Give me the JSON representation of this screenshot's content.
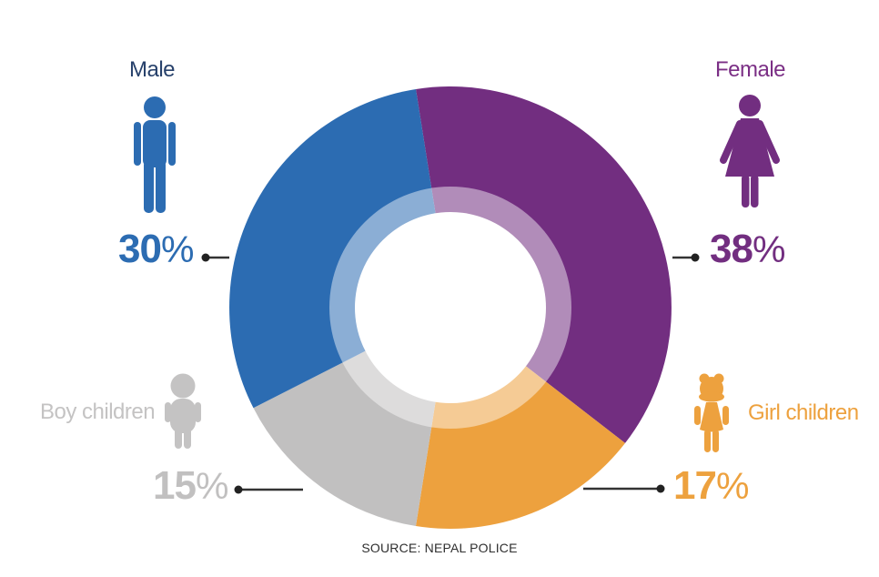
{
  "chart_data": {
    "type": "pie",
    "subtype": "donut",
    "title": "",
    "direction": "clockwise",
    "start_angle_deg": -9,
    "segments": [
      {
        "label": "Female",
        "value": 38,
        "unit": "%",
        "color": "#722E80",
        "light_color": "#AA87B2",
        "label_color": "#7B2F85",
        "icon": "woman-icon"
      },
      {
        "label": "Girl children",
        "value": 17,
        "unit": "%",
        "color": "#EDA13E",
        "light_color": "#F6D2A0",
        "label_color": "#EDA13E",
        "icon": "girl-icon"
      },
      {
        "label": "Boy children",
        "value": 15,
        "unit": "%",
        "color": "#C1C0C0",
        "light_color": "#DEDDDD",
        "label_color": "#C4C3C3",
        "icon": "boy-icon"
      },
      {
        "label": "Male",
        "value": 30,
        "unit": "%",
        "color": "#2C6CB2",
        "light_color": "#8FA6D4",
        "label_color": "#27416B",
        "icon": "man-icon"
      }
    ],
    "inner_ring": {
      "style": "white-overlay",
      "opacity": 0.45
    },
    "leader_line_color": "#333333",
    "source": "SOURCE: NEPAL POLICE"
  },
  "footer": {
    "source_label": "SOURCE: NEPAL POLICE"
  }
}
